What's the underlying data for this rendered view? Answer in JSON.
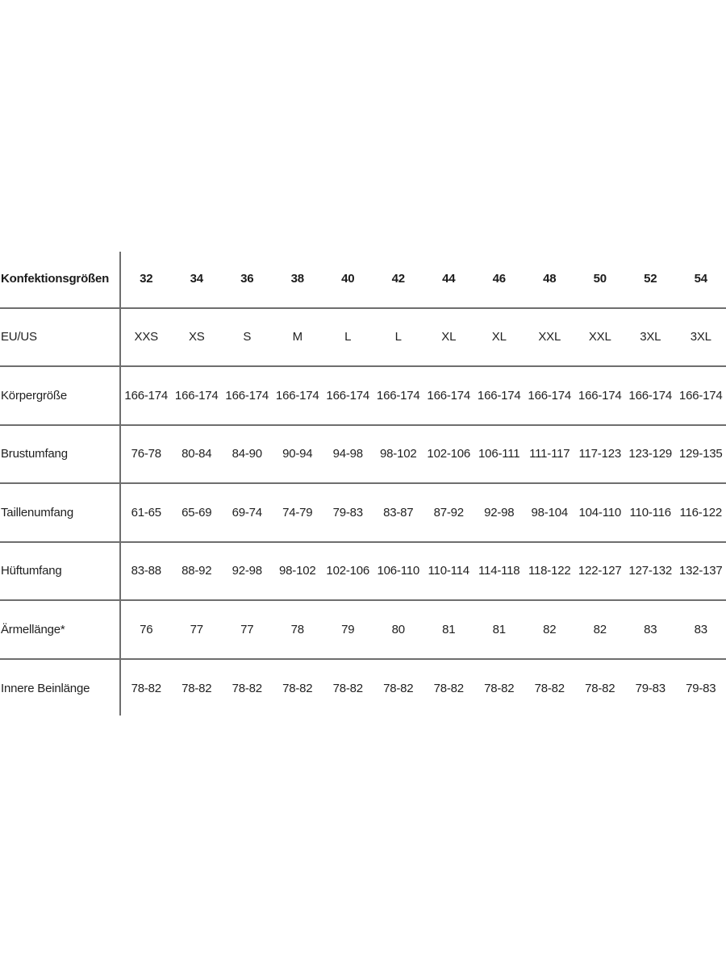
{
  "page": {
    "background_color": "#ffffff",
    "description_label": "size-chart"
  },
  "chart_data": {
    "type": "table",
    "title": "Konfektionsgrößen",
    "colors": {
      "text": "#1f1f1f",
      "header_text": "#1b1b1b",
      "line": "#6e6e6e",
      "background": "#ffffff"
    },
    "header_row": {
      "label": "Konfektionsgrößen",
      "values": [
        "32",
        "34",
        "36",
        "38",
        "40",
        "42",
        "44",
        "46",
        "48",
        "50",
        "52",
        "54"
      ]
    },
    "rows": [
      {
        "label": "EU/US",
        "values": [
          "XXS",
          "XS",
          "S",
          "M",
          "L",
          "L",
          "XL",
          "XL",
          "XXL",
          "XXL",
          "3XL",
          "3XL"
        ]
      },
      {
        "label": "Körpergröße",
        "values": [
          "166-174",
          "166-174",
          "166-174",
          "166-174",
          "166-174",
          "166-174",
          "166-174",
          "166-174",
          "166-174",
          "166-174",
          "166-174",
          "166-174"
        ]
      },
      {
        "label": "Brustumfang",
        "values": [
          "76-78",
          "80-84",
          "84-90",
          "90-94",
          "94-98",
          "98-102",
          "102-106",
          "106-111",
          "111-117",
          "117-123",
          "123-129",
          "129-135"
        ]
      },
      {
        "label": "Taillenumfang",
        "values": [
          "61-65",
          "65-69",
          "69-74",
          "74-79",
          "79-83",
          "83-87",
          "87-92",
          "92-98",
          "98-104",
          "104-110",
          "110-116",
          "116-122"
        ]
      },
      {
        "label": "Hüftumfang",
        "values": [
          "83-88",
          "88-92",
          "92-98",
          "98-102",
          "102-106",
          "106-110",
          "110-114",
          "114-118",
          "118-122",
          "122-127",
          "127-132",
          "132-137"
        ]
      },
      {
        "label": "Ärmellänge*",
        "values": [
          "76",
          "77",
          "77",
          "78",
          "79",
          "80",
          "81",
          "81",
          "82",
          "82",
          "83",
          "83"
        ]
      },
      {
        "label": "Innere Beinlänge",
        "values": [
          "78-82",
          "78-82",
          "78-82",
          "78-82",
          "78-82",
          "78-82",
          "78-82",
          "78-82",
          "78-82",
          "78-82",
          "79-83",
          "79-83"
        ]
      }
    ]
  }
}
